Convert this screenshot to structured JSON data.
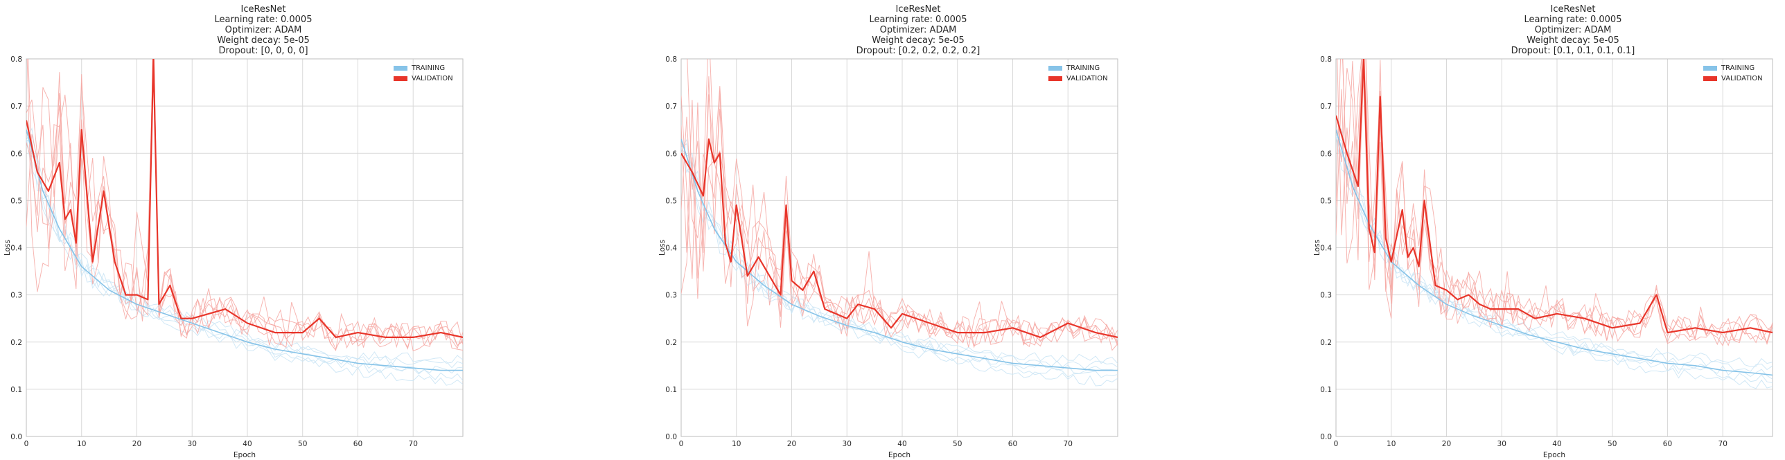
{
  "colors": {
    "training": "#86c3e8",
    "training_faint": "#c9e4f4",
    "validation": "#e8352a",
    "validation_faint": "#f6a8a3",
    "grid": "#d9d9d9",
    "axis": "#bdbdbd"
  },
  "chart_data": [
    {
      "type": "line",
      "title_lines": [
        "IceResNet",
        "Learning rate: 0.0005",
        "Optimizer: ADAM",
        "Weight decay: 5e-05",
        "Dropout: [0, 0, 0, 0]"
      ],
      "xlabel": "Epoch",
      "ylabel": "Loss",
      "xlim": [
        0,
        79
      ],
      "ylim": [
        0,
        0.8
      ],
      "xticks": [
        0,
        10,
        20,
        30,
        40,
        50,
        60,
        70
      ],
      "yticks": [
        0.0,
        0.1,
        0.2,
        0.3,
        0.4,
        0.5,
        0.6,
        0.7,
        0.8
      ],
      "grid": true,
      "legend_position": "top-right",
      "legend": [
        "TRAINING",
        "VALIDATION"
      ],
      "series": [
        {
          "name": "TRAINING",
          "x": [
            0,
            3,
            6,
            10,
            15,
            20,
            25,
            30,
            35,
            40,
            45,
            50,
            55,
            60,
            65,
            70,
            75,
            79
          ],
          "y": [
            0.65,
            0.52,
            0.44,
            0.36,
            0.31,
            0.28,
            0.26,
            0.24,
            0.22,
            0.2,
            0.185,
            0.175,
            0.165,
            0.155,
            0.15,
            0.145,
            0.14,
            0.14
          ]
        },
        {
          "name": "VALIDATION",
          "x": [
            0,
            2,
            4,
            6,
            7,
            8,
            9,
            10,
            12,
            14,
            16,
            18,
            20,
            22,
            23,
            24,
            26,
            28,
            30,
            33,
            36,
            40,
            45,
            50,
            53,
            56,
            60,
            65,
            70,
            75,
            79
          ],
          "y": [
            0.67,
            0.56,
            0.52,
            0.58,
            0.46,
            0.48,
            0.41,
            0.65,
            0.37,
            0.52,
            0.37,
            0.3,
            0.3,
            0.29,
            0.84,
            0.28,
            0.32,
            0.25,
            0.25,
            0.26,
            0.27,
            0.24,
            0.22,
            0.22,
            0.25,
            0.21,
            0.22,
            0.21,
            0.21,
            0.22,
            0.21
          ]
        }
      ]
    },
    {
      "type": "line",
      "title_lines": [
        "IceResNet",
        "Learning rate: 0.0005",
        "Optimizer: ADAM",
        "Weight decay: 5e-05",
        "Dropout: [0.2, 0.2, 0.2, 0.2]"
      ],
      "xlabel": "Epoch",
      "ylabel": "Loss",
      "xlim": [
        0,
        79
      ],
      "ylim": [
        0,
        0.8
      ],
      "xticks": [
        0,
        10,
        20,
        30,
        40,
        50,
        60,
        70
      ],
      "yticks": [
        0.0,
        0.1,
        0.2,
        0.3,
        0.4,
        0.5,
        0.6,
        0.7,
        0.8
      ],
      "grid": true,
      "legend_position": "top-right",
      "legend": [
        "TRAINING",
        "VALIDATION"
      ],
      "series": [
        {
          "name": "TRAINING",
          "x": [
            0,
            3,
            6,
            10,
            15,
            20,
            25,
            30,
            35,
            40,
            45,
            50,
            55,
            60,
            65,
            70,
            75,
            79
          ],
          "y": [
            0.63,
            0.52,
            0.44,
            0.37,
            0.32,
            0.28,
            0.255,
            0.235,
            0.22,
            0.2,
            0.185,
            0.175,
            0.165,
            0.155,
            0.15,
            0.145,
            0.14,
            0.14
          ]
        },
        {
          "name": "VALIDATION",
          "x": [
            0,
            2,
            4,
            5,
            6,
            7,
            8,
            9,
            10,
            12,
            14,
            16,
            18,
            19,
            20,
            22,
            24,
            26,
            28,
            30,
            32,
            35,
            38,
            40,
            45,
            50,
            55,
            60,
            65,
            70,
            75,
            79
          ],
          "y": [
            0.6,
            0.56,
            0.51,
            0.63,
            0.58,
            0.6,
            0.41,
            0.37,
            0.49,
            0.34,
            0.38,
            0.34,
            0.3,
            0.49,
            0.33,
            0.31,
            0.35,
            0.27,
            0.26,
            0.25,
            0.28,
            0.27,
            0.23,
            0.26,
            0.24,
            0.22,
            0.22,
            0.23,
            0.21,
            0.24,
            0.22,
            0.21
          ]
        }
      ]
    },
    {
      "type": "line",
      "title_lines": [
        "IceResNet",
        "Learning rate: 0.0005",
        "Optimizer: ADAM",
        "Weight decay: 5e-05",
        "Dropout: [0.1, 0.1, 0.1, 0.1]"
      ],
      "xlabel": "Epoch",
      "ylabel": "Loss",
      "xlim": [
        0,
        79
      ],
      "ylim": [
        0,
        0.8
      ],
      "xticks": [
        0,
        10,
        20,
        30,
        40,
        50,
        60,
        70
      ],
      "yticks": [
        0.0,
        0.1,
        0.2,
        0.3,
        0.4,
        0.5,
        0.6,
        0.7,
        0.8
      ],
      "grid": true,
      "legend_position": "top-right",
      "legend": [
        "TRAINING",
        "VALIDATION"
      ],
      "series": [
        {
          "name": "TRAINING",
          "x": [
            0,
            3,
            6,
            10,
            15,
            20,
            25,
            30,
            35,
            40,
            45,
            50,
            55,
            60,
            65,
            70,
            75,
            79
          ],
          "y": [
            0.65,
            0.53,
            0.45,
            0.37,
            0.32,
            0.28,
            0.255,
            0.235,
            0.215,
            0.2,
            0.185,
            0.175,
            0.165,
            0.155,
            0.15,
            0.14,
            0.135,
            0.13
          ]
        },
        {
          "name": "VALIDATION",
          "x": [
            0,
            2,
            4,
            5,
            6,
            7,
            8,
            9,
            10,
            12,
            13,
            14,
            15,
            16,
            18,
            20,
            22,
            24,
            26,
            28,
            30,
            33,
            36,
            40,
            45,
            50,
            55,
            58,
            60,
            65,
            70,
            75,
            79
          ],
          "y": [
            0.68,
            0.6,
            0.53,
            0.84,
            0.44,
            0.39,
            0.72,
            0.42,
            0.37,
            0.48,
            0.38,
            0.4,
            0.36,
            0.5,
            0.32,
            0.31,
            0.29,
            0.3,
            0.28,
            0.27,
            0.27,
            0.27,
            0.25,
            0.26,
            0.25,
            0.23,
            0.24,
            0.3,
            0.22,
            0.23,
            0.22,
            0.23,
            0.22
          ]
        }
      ]
    }
  ]
}
